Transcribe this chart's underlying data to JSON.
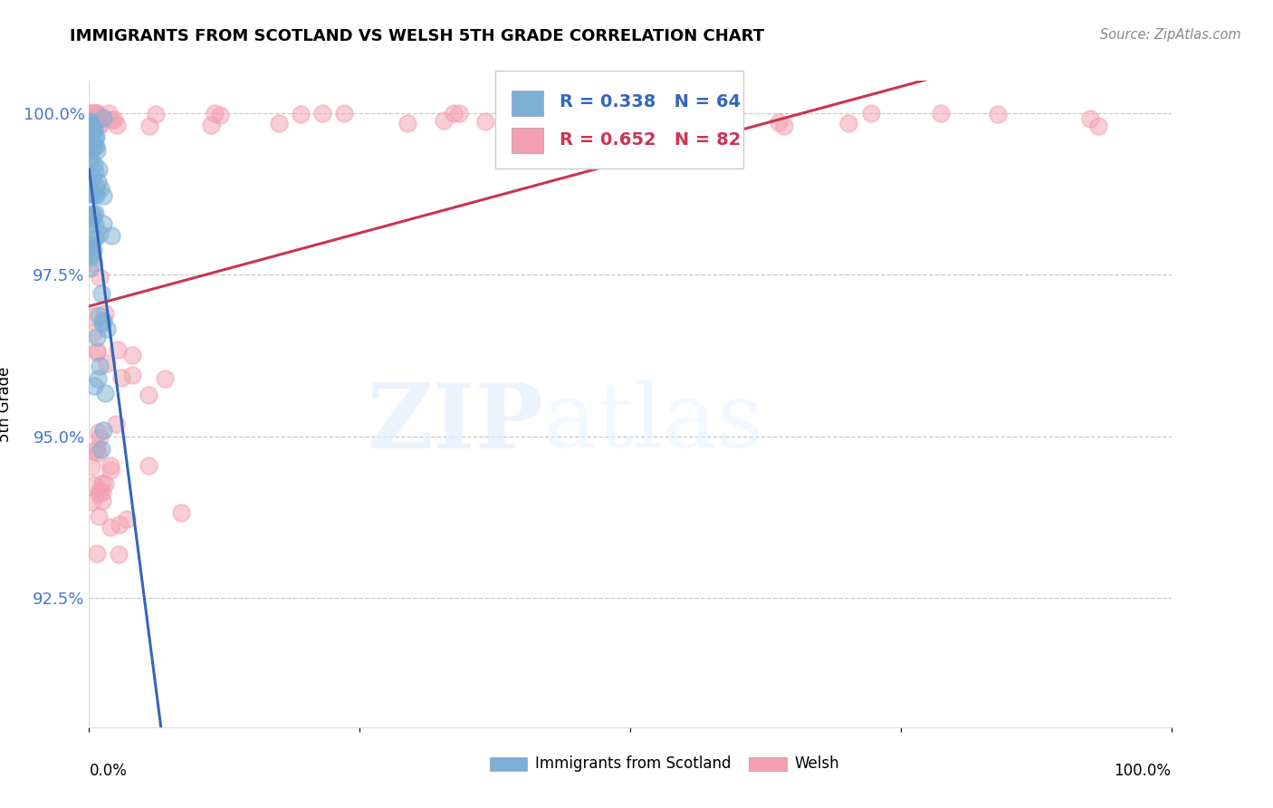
{
  "title": "IMMIGRANTS FROM SCOTLAND VS WELSH 5TH GRADE CORRELATION CHART",
  "source": "Source: ZipAtlas.com",
  "ylabel": "5th Grade",
  "y_ticks": [
    0.925,
    0.95,
    0.975,
    1.0
  ],
  "y_tick_labels": [
    "92.5%",
    "95.0%",
    "97.5%",
    "100.0%"
  ],
  "legend_label1": "Immigrants from Scotland",
  "legend_label2": "Welsh",
  "R1": 0.338,
  "N1": 64,
  "R2": 0.652,
  "N2": 82,
  "color1": "#7BAFD4",
  "color2": "#F4A0B0",
  "trendline1_color": "#3366BB",
  "trendline2_color": "#CC3355",
  "background_color": "#FFFFFF",
  "xlim": [
    0.0,
    1.0
  ],
  "ylim": [
    0.905,
    1.005
  ]
}
